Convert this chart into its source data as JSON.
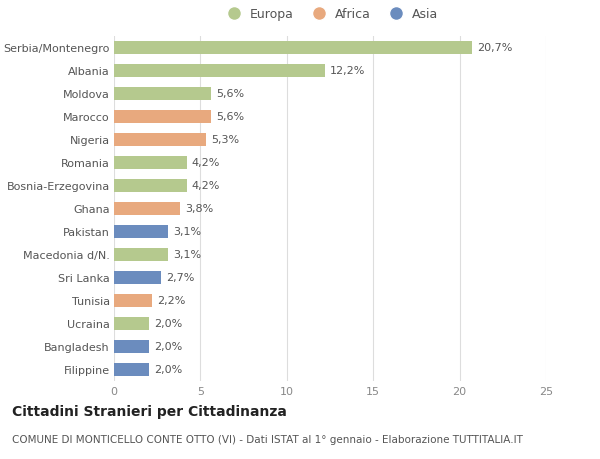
{
  "categories": [
    "Serbia/Montenegro",
    "Albania",
    "Moldova",
    "Marocco",
    "Nigeria",
    "Romania",
    "Bosnia-Erzegovina",
    "Ghana",
    "Pakistan",
    "Macedonia d/N.",
    "Sri Lanka",
    "Tunisia",
    "Ucraina",
    "Bangladesh",
    "Filippine"
  ],
  "values": [
    20.7,
    12.2,
    5.6,
    5.6,
    5.3,
    4.2,
    4.2,
    3.8,
    3.1,
    3.1,
    2.7,
    2.2,
    2.0,
    2.0,
    2.0
  ],
  "labels": [
    "20,7%",
    "12,2%",
    "5,6%",
    "5,6%",
    "5,3%",
    "4,2%",
    "4,2%",
    "3,8%",
    "3,1%",
    "3,1%",
    "2,7%",
    "2,2%",
    "2,0%",
    "2,0%",
    "2,0%"
  ],
  "continents": [
    "Europa",
    "Europa",
    "Europa",
    "Africa",
    "Africa",
    "Europa",
    "Europa",
    "Africa",
    "Asia",
    "Europa",
    "Asia",
    "Africa",
    "Europa",
    "Asia",
    "Asia"
  ],
  "colors": {
    "Europa": "#b5c98e",
    "Africa": "#e8a97e",
    "Asia": "#6b8cbe"
  },
  "xlim": [
    0,
    25
  ],
  "xticks": [
    0,
    5,
    10,
    15,
    20,
    25
  ],
  "title": "Cittadini Stranieri per Cittadinanza",
  "subtitle": "COMUNE DI MONTICELLO CONTE OTTO (VI) - Dati ISTAT al 1° gennaio - Elaborazione TUTTITALIA.IT",
  "bg_color": "#ffffff",
  "bar_height": 0.55,
  "label_fontsize": 8,
  "ytick_fontsize": 8,
  "xtick_fontsize": 8,
  "title_fontsize": 10,
  "subtitle_fontsize": 7.5
}
